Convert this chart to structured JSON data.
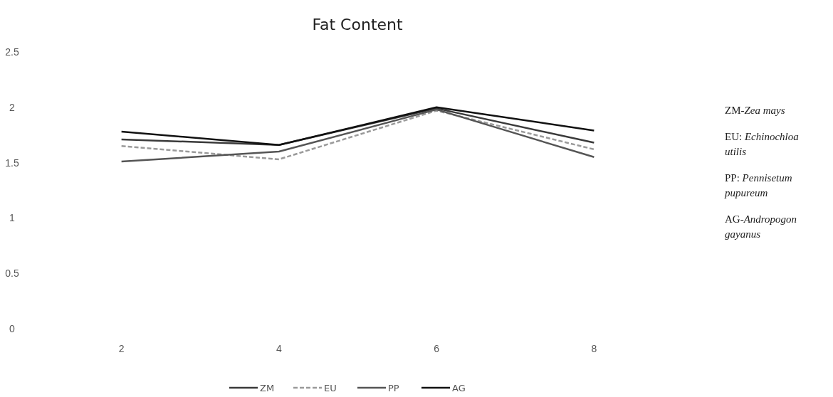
{
  "chart_data": {
    "type": "line",
    "title": "Fat Content",
    "categories": [
      "2",
      "4",
      "6",
      "8"
    ],
    "series": [
      {
        "name": "ZM",
        "color": "#3a3a3a",
        "values": [
          1.71,
          1.66,
          1.99,
          1.68
        ]
      },
      {
        "name": "EU",
        "color": "#9a9a9a",
        "line_style": "dashed",
        "values": [
          1.65,
          1.53,
          1.97,
          1.62
        ]
      },
      {
        "name": "PP",
        "color": "#555555",
        "values": [
          1.51,
          1.6,
          1.98,
          1.55
        ]
      },
      {
        "name": "AG",
        "color": "#111111",
        "values": [
          1.78,
          1.66,
          2.0,
          1.79
        ]
      }
    ],
    "ylim": [
      0,
      2.5
    ],
    "yticks": [
      0,
      0.5,
      1,
      1.5,
      2,
      2.5
    ],
    "grid": false,
    "legend": "bottom",
    "marker": "none",
    "line_style": "solid",
    "annotations": [
      "ZM-Zea mays",
      "EU: Echinochloa utilis",
      "PP: Pennisetum pupureum",
      "AG-Andropogon gayanus"
    ]
  }
}
